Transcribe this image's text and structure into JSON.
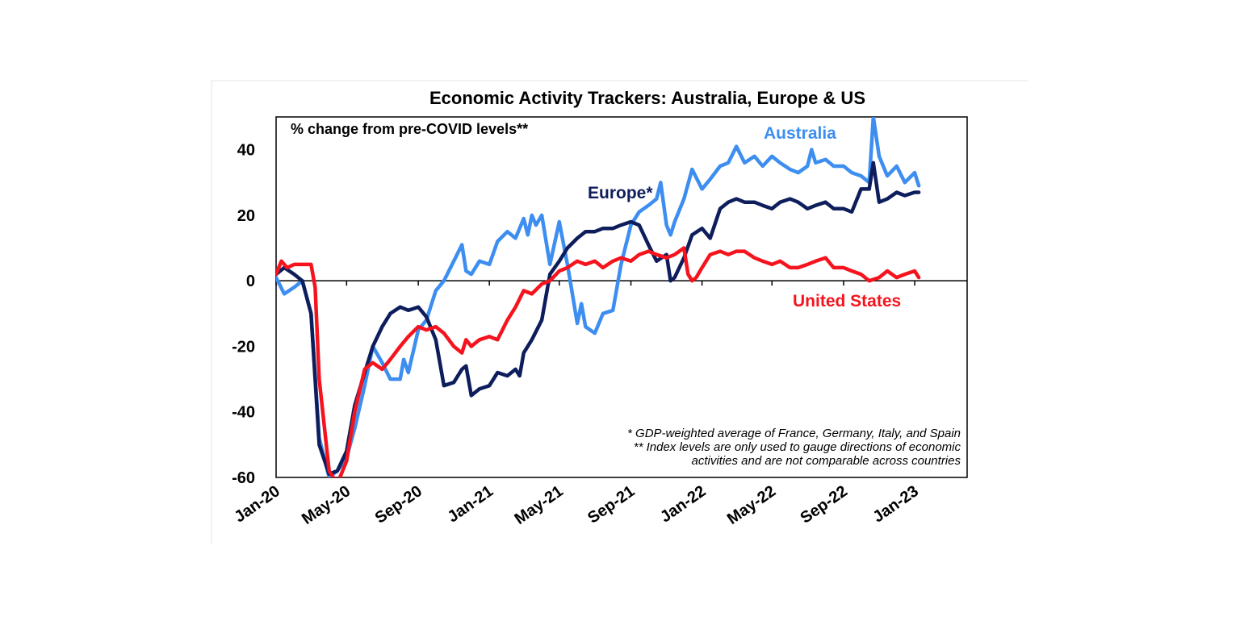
{
  "chart_data": {
    "type": "line",
    "title": "Economic Activity Trackers: Australia, Europe & US",
    "subtitle": "% change from pre-COVID levels**",
    "ylim": [
      -60,
      50
    ],
    "yticks": [
      40,
      20,
      0,
      -20,
      -40,
      -60
    ],
    "xlim": [
      "2020-01",
      "2023-04"
    ],
    "xticks": [
      {
        "label": "Jan-20",
        "date": "2020-01"
      },
      {
        "label": "May-20",
        "date": "2020-05"
      },
      {
        "label": "Sep-20",
        "date": "2020-09"
      },
      {
        "label": "Jan-21",
        "date": "2021-01"
      },
      {
        "label": "May-21",
        "date": "2021-05"
      },
      {
        "label": "Sep-21",
        "date": "2021-09"
      },
      {
        "label": "Jan-22",
        "date": "2022-01"
      },
      {
        "label": "May-22",
        "date": "2022-05"
      },
      {
        "label": "Sep-22",
        "date": "2022-09"
      },
      {
        "label": "Jan-23",
        "date": "2023-01"
      }
    ],
    "grid": false,
    "series": [
      {
        "name": "Australia",
        "color": "#3d8ef0",
        "points": [
          [
            "2020-01-01",
            1
          ],
          [
            "2020-01-15",
            -4
          ],
          [
            "2020-02-01",
            -2
          ],
          [
            "2020-02-15",
            0
          ],
          [
            "2020-03-01",
            -10
          ],
          [
            "2020-03-15",
            -48
          ],
          [
            "2020-04-01",
            -60
          ],
          [
            "2020-04-15",
            -58
          ],
          [
            "2020-05-01",
            -54
          ],
          [
            "2020-05-15",
            -45
          ],
          [
            "2020-06-01",
            -32
          ],
          [
            "2020-06-15",
            -20
          ],
          [
            "2020-07-01",
            -25
          ],
          [
            "2020-07-15",
            -30
          ],
          [
            "2020-08-01",
            -30
          ],
          [
            "2020-08-07",
            -24
          ],
          [
            "2020-08-15",
            -28
          ],
          [
            "2020-09-01",
            -15
          ],
          [
            "2020-09-15",
            -12
          ],
          [
            "2020-10-01",
            -3
          ],
          [
            "2020-10-15",
            0
          ],
          [
            "2020-11-01",
            6
          ],
          [
            "2020-11-15",
            11
          ],
          [
            "2020-11-22",
            3
          ],
          [
            "2020-12-01",
            2
          ],
          [
            "2020-12-15",
            6
          ],
          [
            "2021-01-01",
            5
          ],
          [
            "2021-01-15",
            12
          ],
          [
            "2021-02-01",
            15
          ],
          [
            "2021-02-15",
            13
          ],
          [
            "2021-03-01",
            19
          ],
          [
            "2021-03-08",
            14
          ],
          [
            "2021-03-15",
            20
          ],
          [
            "2021-03-22",
            17
          ],
          [
            "2021-04-01",
            20
          ],
          [
            "2021-04-15",
            5
          ],
          [
            "2021-05-01",
            18
          ],
          [
            "2021-05-15",
            5
          ],
          [
            "2021-06-01",
            -13
          ],
          [
            "2021-06-08",
            -7
          ],
          [
            "2021-06-15",
            -14
          ],
          [
            "2021-07-01",
            -16
          ],
          [
            "2021-07-15",
            -10
          ],
          [
            "2021-08-01",
            -9
          ],
          [
            "2021-08-15",
            5
          ],
          [
            "2021-09-01",
            17
          ],
          [
            "2021-09-15",
            21
          ],
          [
            "2021-10-01",
            23
          ],
          [
            "2021-10-15",
            25
          ],
          [
            "2021-10-22",
            30
          ],
          [
            "2021-11-01",
            17
          ],
          [
            "2021-11-08",
            14
          ],
          [
            "2021-11-15",
            18
          ],
          [
            "2021-12-01",
            25
          ],
          [
            "2021-12-15",
            34
          ],
          [
            "2022-01-01",
            28
          ],
          [
            "2022-01-15",
            31
          ],
          [
            "2022-02-01",
            35
          ],
          [
            "2022-02-15",
            36
          ],
          [
            "2022-03-01",
            41
          ],
          [
            "2022-03-15",
            36
          ],
          [
            "2022-04-01",
            38
          ],
          [
            "2022-04-15",
            35
          ],
          [
            "2022-05-01",
            38
          ],
          [
            "2022-05-15",
            36
          ],
          [
            "2022-06-01",
            34
          ],
          [
            "2022-06-15",
            33
          ],
          [
            "2022-07-01",
            35
          ],
          [
            "2022-07-08",
            40
          ],
          [
            "2022-07-15",
            36
          ],
          [
            "2022-08-01",
            37
          ],
          [
            "2022-08-15",
            35
          ],
          [
            "2022-09-01",
            35
          ],
          [
            "2022-09-15",
            33
          ],
          [
            "2022-10-01",
            32
          ],
          [
            "2022-10-15",
            30
          ],
          [
            "2022-10-22",
            50
          ],
          [
            "2022-11-01",
            38
          ],
          [
            "2022-11-15",
            32
          ],
          [
            "2022-12-01",
            35
          ],
          [
            "2022-12-15",
            30
          ],
          [
            "2023-01-01",
            33
          ],
          [
            "2023-01-08",
            29
          ]
        ]
      },
      {
        "name": "Europe*",
        "color": "#0e1d5c",
        "points": [
          [
            "2020-01-01",
            2
          ],
          [
            "2020-01-15",
            4
          ],
          [
            "2020-02-01",
            2
          ],
          [
            "2020-02-15",
            0
          ],
          [
            "2020-03-01",
            -10
          ],
          [
            "2020-03-15",
            -50
          ],
          [
            "2020-04-01",
            -59
          ],
          [
            "2020-04-15",
            -58
          ],
          [
            "2020-05-01",
            -52
          ],
          [
            "2020-05-15",
            -38
          ],
          [
            "2020-06-01",
            -28
          ],
          [
            "2020-06-15",
            -20
          ],
          [
            "2020-07-01",
            -14
          ],
          [
            "2020-07-15",
            -10
          ],
          [
            "2020-08-01",
            -8
          ],
          [
            "2020-08-15",
            -9
          ],
          [
            "2020-09-01",
            -8
          ],
          [
            "2020-09-15",
            -11
          ],
          [
            "2020-10-01",
            -18
          ],
          [
            "2020-10-15",
            -32
          ],
          [
            "2020-11-01",
            -31
          ],
          [
            "2020-11-15",
            -27
          ],
          [
            "2020-11-22",
            -26
          ],
          [
            "2020-12-01",
            -35
          ],
          [
            "2020-12-15",
            -33
          ],
          [
            "2021-01-01",
            -32
          ],
          [
            "2021-01-15",
            -28
          ],
          [
            "2021-02-01",
            -29
          ],
          [
            "2021-02-15",
            -27
          ],
          [
            "2021-02-22",
            -29
          ],
          [
            "2021-03-01",
            -22
          ],
          [
            "2021-03-15",
            -18
          ],
          [
            "2021-04-01",
            -12
          ],
          [
            "2021-04-15",
            2
          ],
          [
            "2021-05-01",
            6
          ],
          [
            "2021-05-15",
            10
          ],
          [
            "2021-06-01",
            13
          ],
          [
            "2021-06-15",
            15
          ],
          [
            "2021-07-01",
            15
          ],
          [
            "2021-07-15",
            16
          ],
          [
            "2021-08-01",
            16
          ],
          [
            "2021-08-15",
            17
          ],
          [
            "2021-09-01",
            18
          ],
          [
            "2021-09-15",
            17
          ],
          [
            "2021-10-01",
            11
          ],
          [
            "2021-10-15",
            6
          ],
          [
            "2021-11-01",
            8
          ],
          [
            "2021-11-08",
            0
          ],
          [
            "2021-11-15",
            1
          ],
          [
            "2021-12-01",
            7
          ],
          [
            "2021-12-15",
            14
          ],
          [
            "2022-01-01",
            16
          ],
          [
            "2022-01-15",
            13
          ],
          [
            "2022-02-01",
            22
          ],
          [
            "2022-02-15",
            24
          ],
          [
            "2022-03-01",
            25
          ],
          [
            "2022-03-15",
            24
          ],
          [
            "2022-04-01",
            24
          ],
          [
            "2022-04-15",
            23
          ],
          [
            "2022-05-01",
            22
          ],
          [
            "2022-05-15",
            24
          ],
          [
            "2022-06-01",
            25
          ],
          [
            "2022-06-15",
            24
          ],
          [
            "2022-07-01",
            22
          ],
          [
            "2022-07-15",
            23
          ],
          [
            "2022-08-01",
            24
          ],
          [
            "2022-08-15",
            22
          ],
          [
            "2022-09-01",
            22
          ],
          [
            "2022-09-15",
            21
          ],
          [
            "2022-10-01",
            28
          ],
          [
            "2022-10-15",
            28
          ],
          [
            "2022-10-22",
            36
          ],
          [
            "2022-11-01",
            24
          ],
          [
            "2022-11-15",
            25
          ],
          [
            "2022-12-01",
            27
          ],
          [
            "2022-12-15",
            26
          ],
          [
            "2023-01-01",
            27
          ],
          [
            "2023-01-08",
            27
          ]
        ]
      },
      {
        "name": "United States",
        "color": "#f5141e",
        "points": [
          [
            "2020-01-01",
            2
          ],
          [
            "2020-01-10",
            6
          ],
          [
            "2020-01-20",
            4
          ],
          [
            "2020-02-01",
            5
          ],
          [
            "2020-02-15",
            5
          ],
          [
            "2020-03-01",
            5
          ],
          [
            "2020-03-08",
            -2
          ],
          [
            "2020-03-15",
            -30
          ],
          [
            "2020-04-01",
            -58
          ],
          [
            "2020-04-15",
            -62
          ],
          [
            "2020-05-01",
            -55
          ],
          [
            "2020-05-15",
            -40
          ],
          [
            "2020-06-01",
            -27
          ],
          [
            "2020-06-15",
            -25
          ],
          [
            "2020-07-01",
            -27
          ],
          [
            "2020-07-15",
            -24
          ],
          [
            "2020-08-01",
            -20
          ],
          [
            "2020-08-15",
            -17
          ],
          [
            "2020-09-01",
            -14
          ],
          [
            "2020-09-15",
            -15
          ],
          [
            "2020-10-01",
            -14
          ],
          [
            "2020-10-15",
            -16
          ],
          [
            "2020-11-01",
            -20
          ],
          [
            "2020-11-15",
            -22
          ],
          [
            "2020-11-22",
            -18
          ],
          [
            "2020-12-01",
            -20
          ],
          [
            "2020-12-15",
            -18
          ],
          [
            "2021-01-01",
            -17
          ],
          [
            "2021-01-15",
            -18
          ],
          [
            "2021-02-01",
            -12
          ],
          [
            "2021-02-15",
            -8
          ],
          [
            "2021-03-01",
            -3
          ],
          [
            "2021-03-15",
            -4
          ],
          [
            "2021-04-01",
            -1
          ],
          [
            "2021-04-15",
            0
          ],
          [
            "2021-05-01",
            3
          ],
          [
            "2021-05-15",
            4
          ],
          [
            "2021-06-01",
            6
          ],
          [
            "2021-06-15",
            5
          ],
          [
            "2021-07-01",
            6
          ],
          [
            "2021-07-15",
            4
          ],
          [
            "2021-08-01",
            6
          ],
          [
            "2021-08-15",
            7
          ],
          [
            "2021-09-01",
            6
          ],
          [
            "2021-09-15",
            8
          ],
          [
            "2021-10-01",
            9
          ],
          [
            "2021-10-15",
            8
          ],
          [
            "2021-11-01",
            7
          ],
          [
            "2021-11-15",
            8
          ],
          [
            "2021-12-01",
            10
          ],
          [
            "2021-12-08",
            2
          ],
          [
            "2021-12-15",
            0
          ],
          [
            "2021-12-22",
            1
          ],
          [
            "2022-01-01",
            4
          ],
          [
            "2022-01-15",
            8
          ],
          [
            "2022-02-01",
            9
          ],
          [
            "2022-02-15",
            8
          ],
          [
            "2022-03-01",
            9
          ],
          [
            "2022-03-15",
            9
          ],
          [
            "2022-04-01",
            7
          ],
          [
            "2022-04-15",
            6
          ],
          [
            "2022-05-01",
            5
          ],
          [
            "2022-05-15",
            6
          ],
          [
            "2022-06-01",
            4
          ],
          [
            "2022-06-15",
            4
          ],
          [
            "2022-07-01",
            5
          ],
          [
            "2022-07-15",
            6
          ],
          [
            "2022-08-01",
            7
          ],
          [
            "2022-08-15",
            4
          ],
          [
            "2022-09-01",
            4
          ],
          [
            "2022-09-15",
            3
          ],
          [
            "2022-10-01",
            2
          ],
          [
            "2022-10-15",
            0
          ],
          [
            "2022-11-01",
            1
          ],
          [
            "2022-11-15",
            3
          ],
          [
            "2022-12-01",
            1
          ],
          [
            "2022-12-15",
            2
          ],
          [
            "2023-01-01",
            3
          ],
          [
            "2023-01-08",
            1
          ]
        ]
      }
    ],
    "series_labels": {
      "australia": "Australia",
      "europe": "Europe*",
      "united_states": "United States"
    },
    "footnotes": [
      "* GDP-weighted average of France, Germany, Italy, and Spain",
      "** Index levels are only used to gauge directions of economic",
      "activities and are not comparable across countries"
    ]
  }
}
